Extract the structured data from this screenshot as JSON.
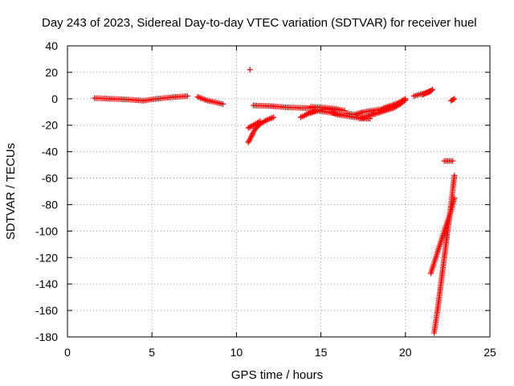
{
  "chart_data": {
    "type": "scatter",
    "title": "Day 243 of 2023, Sidereal Day-to-day VTEC variation (SDTVAR) for receiver huel",
    "xlabel": "GPS time / hours",
    "ylabel": "SDTVAR / TECUs",
    "xlim": [
      0,
      25
    ],
    "ylim": [
      -180,
      40
    ],
    "grid": true,
    "xticks": [
      0,
      5,
      10,
      15,
      20,
      25
    ],
    "yticks": [
      40,
      20,
      0,
      -20,
      -40,
      -60,
      -80,
      -100,
      -120,
      -140,
      -160,
      -180
    ],
    "marker": "+",
    "series_color": "#ff0000",
    "segments": [
      {
        "x": [
          1.6,
          2.5,
          3.5,
          4.5,
          5.0,
          5.7,
          6.5,
          7.1
        ],
        "y": [
          0.5,
          0,
          -0.5,
          -1.5,
          -0.5,
          0.5,
          1.5,
          2.0
        ]
      },
      {
        "x": [
          7.7,
          8.2,
          8.7,
          9.2
        ],
        "y": [
          1.5,
          -1.0,
          -2.5,
          -4.0
        ]
      },
      {
        "x": [
          10.8
        ],
        "y": [
          22.0
        ]
      },
      {
        "x": [
          10.7,
          11.0,
          11.4
        ],
        "y": [
          -22.0,
          -20.0,
          -17.0
        ]
      },
      {
        "x": [
          10.7,
          10.9,
          11.1,
          11.4,
          11.8,
          12.2
        ],
        "y": [
          -33.0,
          -28.0,
          -23.0,
          -19.0,
          -16.0,
          -14.0
        ]
      },
      {
        "x": [
          11.0,
          12.0,
          13.0,
          14.0,
          14.5
        ],
        "y": [
          -5.0,
          -5.5,
          -6.5,
          -7.0,
          -7.0
        ]
      },
      {
        "x": [
          13.8,
          14.3,
          14.8,
          15.1,
          15.6,
          16.0
        ],
        "y": [
          -14.0,
          -11.0,
          -9.0,
          -8.0,
          -8.0,
          -8.0
        ]
      },
      {
        "x": [
          14.4,
          15.0,
          15.5,
          16.0,
          16.4
        ],
        "y": [
          -6.0,
          -6.5,
          -7.0,
          -8.0,
          -9.0
        ]
      },
      {
        "x": [
          14.3,
          14.8,
          15.3,
          15.8,
          16.2
        ],
        "y": [
          -10.0,
          -9.0,
          -10.0,
          -11.0,
          -12.0
        ]
      },
      {
        "x": [
          15.6,
          16.0,
          16.5,
          17.0,
          17.5,
          17.9
        ],
        "y": [
          -10.0,
          -12.0,
          -13.0,
          -14.0,
          -15.0,
          -15.0
        ]
      },
      {
        "x": [
          16.5,
          17.0,
          17.5,
          18.0,
          18.5,
          19.0
        ],
        "y": [
          -11.0,
          -12.0,
          -10.0,
          -9.0,
          -8.0,
          -7.0
        ]
      },
      {
        "x": [
          17.3,
          17.8,
          18.3,
          18.8,
          19.3,
          19.7,
          20.0
        ],
        "y": [
          -15.0,
          -13.0,
          -11.0,
          -9.0,
          -7.0,
          -4.0,
          -1.0
        ]
      },
      {
        "x": [
          18.7,
          19.2,
          19.6,
          20.0
        ],
        "y": [
          -7.0,
          -5.0,
          -3.0,
          0.0
        ]
      },
      {
        "x": [
          20.5,
          20.9,
          21.3,
          21.5
        ],
        "y": [
          2.0,
          3.5,
          5.0,
          6.0
        ]
      },
      {
        "x": [
          21.0,
          21.4,
          21.6
        ],
        "y": [
          3.0,
          5.0,
          7.0
        ]
      },
      {
        "x": [
          22.3,
          22.8
        ],
        "y": [
          -47.0,
          -47.0
        ]
      },
      {
        "x": [
          22.7,
          22.9
        ],
        "y": [
          -1.5,
          0.0
        ]
      },
      {
        "x": [
          21.7,
          21.9,
          22.1,
          22.3,
          22.5,
          22.7,
          22.9
        ],
        "y": [
          -177.0,
          -160.0,
          -140.0,
          -120.0,
          -100.0,
          -80.0,
          -58.0
        ]
      },
      {
        "x": [
          21.5,
          21.8,
          22.1,
          22.4,
          22.7,
          22.9
        ],
        "y": [
          -132.0,
          -120.0,
          -108.0,
          -96.0,
          -85.0,
          -75.0
        ]
      }
    ]
  }
}
